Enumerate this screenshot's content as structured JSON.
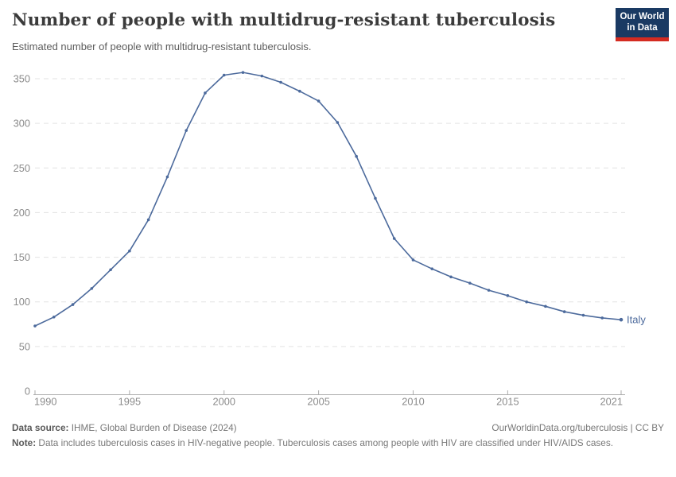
{
  "header": {
    "title": "Number of people with multidrug-resistant tuberculosis",
    "subtitle": "Estimated number of people with multidrug-resistant tuberculosis.",
    "logo": {
      "line1": "Our World",
      "line2": "in Data"
    }
  },
  "chart_data": {
    "type": "line",
    "title": "Number of people with multidrug-resistant tuberculosis",
    "entity_label": "Italy",
    "line_color": "#4c6a9c",
    "grid": "horizontal-dashed",
    "xlim": [
      1990,
      2021
    ],
    "ylim": [
      0,
      350
    ],
    "x_ticks": [
      1990,
      1995,
      2000,
      2005,
      2010,
      2015,
      2021
    ],
    "y_ticks": [
      0,
      50,
      100,
      150,
      200,
      250,
      300,
      350
    ],
    "series": [
      {
        "name": "Italy",
        "x": [
          1990,
          1991,
          1992,
          1993,
          1994,
          1995,
          1996,
          1997,
          1998,
          1999,
          2000,
          2001,
          2002,
          2003,
          2004,
          2005,
          2006,
          2007,
          2008,
          2009,
          2010,
          2011,
          2012,
          2013,
          2014,
          2015,
          2016,
          2017,
          2018,
          2019,
          2020,
          2021
        ],
        "values": [
          73,
          83,
          97,
          115,
          136,
          157,
          192,
          240,
          292,
          334,
          354,
          357,
          353,
          346,
          336,
          325,
          301,
          263,
          216,
          171,
          147,
          137,
          128,
          121,
          113,
          107,
          100,
          95,
          89,
          85,
          82,
          80
        ]
      }
    ]
  },
  "footer": {
    "datasource_label": "Data source:",
    "datasource_value": " IHME, Global Burden of Disease (2024)",
    "link": "OurWorldinData.org/tuberculosis | CC BY",
    "note_label": "Note:",
    "note_value": " Data includes tuberculosis cases in HIV-negative people. Tuberculosis cases among people with HIV are classified under HIV/AIDS cases."
  }
}
